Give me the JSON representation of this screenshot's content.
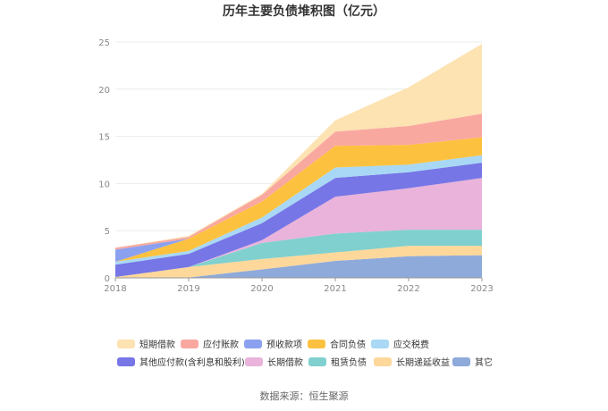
{
  "chart_data": {
    "type": "area",
    "stacked": true,
    "title": "历年主要负债堆积图（亿元）",
    "source": "数据来源：恒生聚源",
    "categories": [
      "2018",
      "2019",
      "2020",
      "2021",
      "2022",
      "2023"
    ],
    "ylim": [
      0,
      25
    ],
    "yticks": [
      0,
      5,
      10,
      15,
      20,
      25
    ],
    "grid": true,
    "legend_position": "bottom",
    "series": [
      {
        "name": "其它",
        "color": "#8eaadb",
        "values": [
          0.05,
          0.05,
          0.9,
          1.8,
          2.3,
          2.4
        ]
      },
      {
        "name": "长期递延收益",
        "color": "#fdd89a",
        "values": [
          0.05,
          1.1,
          1.1,
          0.9,
          1.1,
          1.0
        ]
      },
      {
        "name": "租赁负债",
        "color": "#80d0cf",
        "values": [
          0.0,
          0.0,
          1.7,
          2.0,
          1.7,
          1.7
        ]
      },
      {
        "name": "长期借款",
        "color": "#e9b3db",
        "values": [
          0.0,
          0.0,
          0.3,
          3.9,
          4.4,
          5.5
        ]
      },
      {
        "name": "其他应付款(含利息和股利)",
        "color": "#7676e6",
        "values": [
          1.3,
          1.4,
          1.8,
          2.0,
          1.7,
          1.6
        ]
      },
      {
        "name": "应交税费",
        "color": "#a8d8f5",
        "values": [
          0.3,
          0.3,
          0.6,
          1.1,
          0.8,
          0.8
        ]
      },
      {
        "name": "合同负债",
        "color": "#fcc23f",
        "values": [
          0.0,
          1.3,
          1.7,
          2.3,
          2.1,
          1.9
        ]
      },
      {
        "name": "预收款项",
        "color": "#8ba1f0",
        "values": [
          1.3,
          0.0,
          0.0,
          0.0,
          0.0,
          0.0
        ]
      },
      {
        "name": "应付账款",
        "color": "#f9a8a0",
        "values": [
          0.2,
          0.2,
          0.7,
          1.5,
          2.0,
          2.5
        ]
      },
      {
        "name": "短期借款",
        "color": "#fde2b2",
        "values": [
          0.0,
          0.1,
          0.1,
          1.2,
          4.1,
          7.4
        ]
      }
    ],
    "legend_order": [
      "短期借款",
      "应付账款",
      "预收款项",
      "合同负债",
      "应交税费",
      "其他应付款(含利息和股利)",
      "长期借款",
      "租赁负债",
      "长期递延收益",
      "其它"
    ]
  }
}
